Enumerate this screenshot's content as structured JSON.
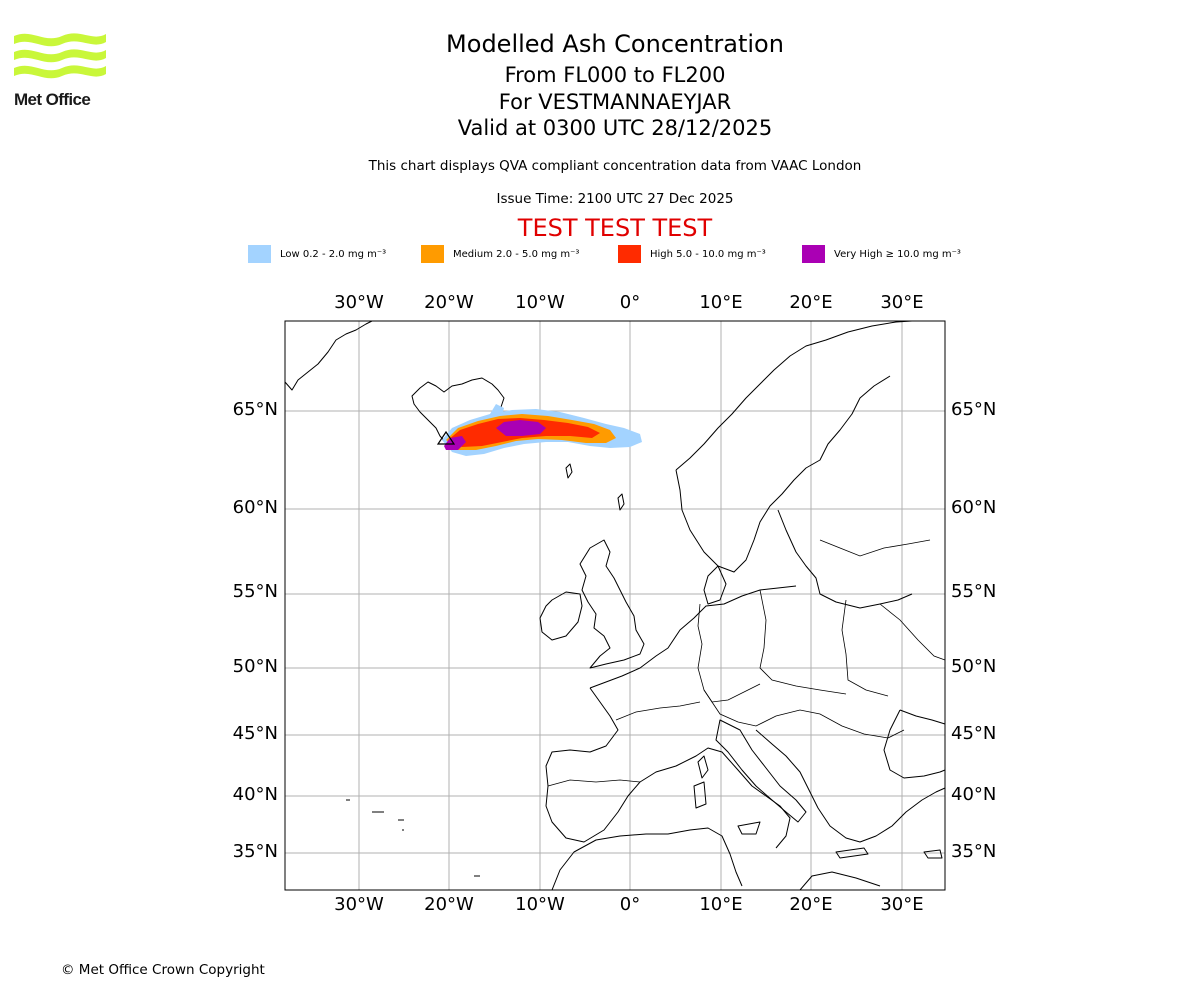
{
  "header": {
    "logo_label": "Met Office",
    "title": "Modelled Ash Concentration",
    "subtitle_levels": "From FL000 to FL200",
    "subtitle_volcano": "For VESTMANNAEYJAR",
    "subtitle_valid": "Valid at 0300 UTC 28/12/2025",
    "compliance_note": "This chart displays QVA compliant concentration data from VAAC London",
    "issue_time": "Issue Time: 2100 UTC 27 Dec 2025",
    "test_banner": "TEST TEST TEST",
    "test_color": "#e00000"
  },
  "legend": [
    {
      "label": "Low 0.2 - 2.0 mg m⁻³",
      "color": "#a3d3ff"
    },
    {
      "label": "Medium 2.0 - 5.0 mg m⁻³",
      "color": "#ff9b00"
    },
    {
      "label": "High 5.0 - 10.0 mg m⁻³",
      "color": "#ff2b00"
    },
    {
      "label": "Very High ≥ 10.0 mg m⁻³",
      "color": "#aa00b4"
    }
  ],
  "map": {
    "lon_labels": [
      "30°W",
      "20°W",
      "10°W",
      "0°",
      "10°E",
      "20°E",
      "30°E"
    ],
    "lat_labels": [
      "65°N",
      "60°N",
      "55°N",
      "50°N",
      "45°N",
      "40°N",
      "35°N"
    ],
    "lon_range": [
      -38,
      35
    ],
    "lat_range": [
      33,
      69
    ],
    "gridlines": true,
    "volcano_marker": "triangle-icon",
    "ash_cloud_colors": {
      "low": "#a3d3ff",
      "medium": "#ff9b00",
      "high": "#ff2b00",
      "very_high": "#aa00b4"
    }
  },
  "footer": {
    "copyright": "© Met Office Crown Copyright"
  }
}
